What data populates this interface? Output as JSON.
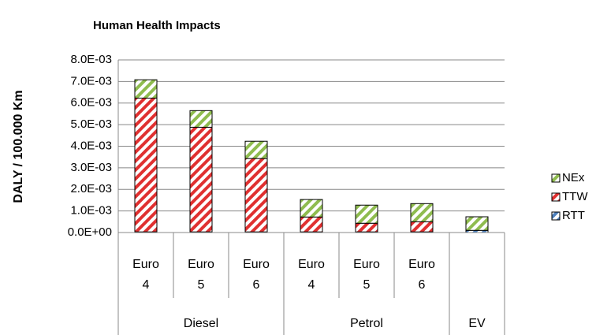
{
  "chart_data": {
    "type": "stacked-bar",
    "title": "Human Health Impacts",
    "y_label": "DALY / 100.000 Km",
    "categories": [
      "Euro 4",
      "Euro 5",
      "Euro 6",
      "Euro 4",
      "Euro 5",
      "Euro 6",
      null
    ],
    "groups": [
      {
        "name": "Diesel",
        "span": 3
      },
      {
        "name": "Petrol",
        "span": 3
      },
      {
        "name": "EV",
        "span": 1
      }
    ],
    "series": [
      {
        "name": "RTT",
        "color": "#4f81bd",
        "values": [
          3e-05,
          3e-05,
          3e-05,
          3e-05,
          3e-05,
          3e-05,
          0.0001
        ]
      },
      {
        "name": "TTW",
        "color": "#e03030",
        "values": [
          0.0062,
          0.00485,
          0.0034,
          0.00069,
          0.0004,
          0.00047,
          0.0
        ]
      },
      {
        "name": "NEx",
        "color": "#8fbc4f",
        "values": [
          0.00085,
          0.00077,
          0.0008,
          0.00081,
          0.00084,
          0.00084,
          0.00063
        ]
      }
    ],
    "ylim": [
      0,
      0.008
    ],
    "yticks": [
      {
        "value": 0,
        "label": "0.0E+00"
      },
      {
        "value": 0.001,
        "label": "1.0E-03"
      },
      {
        "value": 0.002,
        "label": "2.0E-03"
      },
      {
        "value": 0.003,
        "label": "3.0E-03"
      },
      {
        "value": 0.004,
        "label": "4.0E-03"
      },
      {
        "value": 0.005,
        "label": "5.0E-03"
      },
      {
        "value": 0.006,
        "label": "6.0E-03"
      },
      {
        "value": 0.007,
        "label": "7.0E-03"
      },
      {
        "value": 0.008,
        "label": "8.0E-03"
      }
    ],
    "grid": true,
    "legend": "right"
  }
}
